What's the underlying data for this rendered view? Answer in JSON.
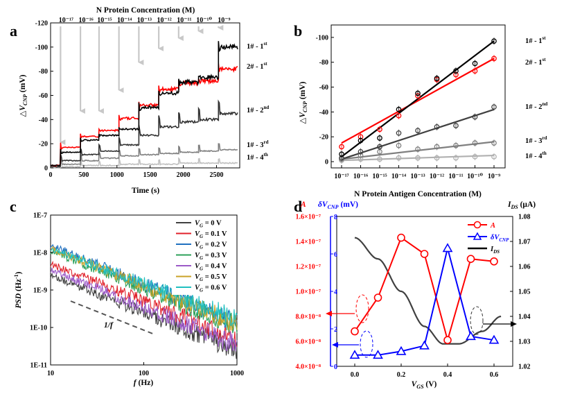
{
  "chart_data": [
    {
      "panel": "a",
      "type": "line",
      "top_axis_title": "N Protein Concentration (M)",
      "top_axis_labels": [
        "10⁻¹⁷",
        "10⁻¹⁶",
        "10⁻¹⁵",
        "10⁻¹⁴",
        "10⁻¹³",
        "10⁻¹²",
        "10⁻¹¹",
        "10⁻¹⁰",
        "10⁻⁹"
      ],
      "injection_times": [
        150,
        450,
        730,
        1030,
        1330,
        1630,
        1930,
        2230,
        2530
      ],
      "xlabel": "Time (s)",
      "ylabel": "△V_CNP (mV)",
      "xlim": [
        0,
        2850
      ],
      "ylim": [
        0,
        -120
      ],
      "x_ticks": [
        "0",
        "500",
        "1000",
        "1500",
        "2000",
        "2500"
      ],
      "y_ticks": [
        "0",
        "-20",
        "-40",
        "-60",
        "-80",
        "-100",
        "-120"
      ],
      "series": [
        {
          "name": "1# - 1st",
          "color": "#000000",
          "levels": [
            -2,
            -13,
            -23,
            -27,
            -32,
            -50,
            -62,
            -71,
            -75,
            -100
          ]
        },
        {
          "name": "2# - 1st",
          "color": "#ff0000",
          "levels": [
            -2,
            -17,
            -26,
            -31,
            -41,
            -52,
            -65,
            -70,
            -72,
            -82
          ]
        },
        {
          "name": "1# - 2nd",
          "color": "#333333",
          "levels": [
            -1,
            -6,
            -11,
            -14,
            -19,
            -27,
            -34,
            -38,
            -40,
            -45
          ]
        },
        {
          "name": "1# - 3rd",
          "color": "#7f7f7f",
          "levels": [
            -1,
            -3,
            -6,
            -8,
            -10,
            -11,
            -12,
            -13,
            -14,
            -15
          ]
        },
        {
          "name": "1# - 4th",
          "color": "#c0c0c0",
          "levels": [
            0,
            -1,
            -2,
            -2,
            -3,
            -3,
            -3,
            -4,
            -4,
            -4
          ]
        }
      ]
    },
    {
      "panel": "b",
      "type": "scatter",
      "xlabel": "N Protein Antigen Concentration (M)",
      "ylabel": "△V_CNP (mV)",
      "x_exponents": [
        -17,
        -16,
        -15,
        -14,
        -13,
        -12,
        -11,
        -10,
        -9
      ],
      "x_tick_labels": [
        "10⁻¹⁷",
        "10⁻¹⁶",
        "10⁻¹⁵",
        "10⁻¹⁴",
        "10⁻¹³",
        "10⁻¹²",
        "10⁻¹¹",
        "10⁻¹⁰",
        "10⁻⁹"
      ],
      "ylim": [
        0,
        -110
      ],
      "y_ticks": [
        "0",
        "-20",
        "-40",
        "-60",
        "-80",
        "-100"
      ],
      "series": [
        {
          "name": "1# - 1st",
          "color": "#000000",
          "values": [
            -6,
            -17,
            -19,
            -42,
            -55,
            -67,
            -73,
            -79,
            -97
          ],
          "fit": [
            -4,
            -97
          ]
        },
        {
          "name": "2# - 1st",
          "color": "#ff0000",
          "values": [
            -12,
            -20,
            -26,
            -37,
            -53,
            -66,
            -70,
            -73,
            -83
          ],
          "fit": [
            -15,
            -83
          ]
        },
        {
          "name": "1# - 2nd",
          "color": "#404040",
          "values": [
            -3,
            -8,
            -12,
            -23,
            -25,
            -28,
            -29,
            -36,
            -44
          ],
          "fit": [
            -2,
            -42
          ]
        },
        {
          "name": "1# - 3rd",
          "color": "#7f7f7f",
          "values": [
            -2,
            -5,
            -8,
            -13,
            -10,
            -12,
            -13,
            -15,
            -15
          ],
          "fit": [
            -2,
            -16
          ]
        },
        {
          "name": "1# - 4th",
          "color": "#b0b0b0",
          "values": [
            -1,
            -2,
            -2,
            -3,
            -3,
            -3,
            -3,
            -4,
            -4
          ],
          "fit": [
            -1,
            -5
          ]
        }
      ]
    },
    {
      "panel": "c",
      "type": "line",
      "xlabel": "f (Hz)",
      "ylabel": "PSD (Hz⁻¹)",
      "x_scale": "log",
      "y_scale": "log",
      "xlim": [
        10,
        1000
      ],
      "ylim": [
        1e-11,
        1e-07
      ],
      "x_ticks": [
        "10",
        "100",
        "1000"
      ],
      "y_ticks": [
        "1E-7",
        "1E-8",
        "1E-9",
        "1E-10",
        "1E-11"
      ],
      "annotation": "1/f",
      "series": [
        {
          "name": "VG = 0 V",
          "color": "#404040",
          "psd_at_10Hz": 2.5e-09,
          "slope": -1.0
        },
        {
          "name": "VG = 0.1 V",
          "color": "#e0202a",
          "psd_at_10Hz": 5e-09,
          "slope": -1.0
        },
        {
          "name": "VG = 0.2 V",
          "color": "#1f6fbf",
          "psd_at_10Hz": 1.6e-08,
          "slope": -1.05
        },
        {
          "name": "VG = 0.3 V",
          "color": "#2ca05a",
          "psd_at_10Hz": 1.1e-08,
          "slope": -1.0
        },
        {
          "name": "VG = 0.4 V",
          "color": "#9b59c7",
          "psd_at_10Hz": 3.5e-09,
          "slope": -1.0
        },
        {
          "name": "VG = 0.5 V",
          "color": "#c9a227",
          "psd_at_10Hz": 1.3e-08,
          "slope": -1.0
        },
        {
          "name": "VG = 0.6 V",
          "color": "#20c0c0",
          "psd_at_10Hz": 1.3e-08,
          "slope": -0.95
        }
      ]
    },
    {
      "panel": "d",
      "type": "line",
      "xlabel": "V_GS (V)",
      "x": [
        0,
        0.1,
        0.2,
        0.3,
        0.4,
        0.5,
        0.6
      ],
      "x_ticks": [
        "0.0",
        "0.2",
        "0.4",
        "0.6"
      ],
      "left_axis_A": {
        "label": "A",
        "color": "#ff0000",
        "ylim": [
          4e-08,
          1.6e-07
        ],
        "ticks": [
          "4.0×10⁻⁸",
          "6.0×10⁻⁸",
          "8.0×10⁻⁸",
          "1.0×10⁻⁷",
          "1.2×10⁻⁷",
          "1.4×10⁻⁷",
          "1.6×10⁻⁷"
        ]
      },
      "left_axis_dV": {
        "label": "δV_CNP (mV)",
        "color": "#0000ff",
        "ylim": [
          0,
          8
        ],
        "ticks": [
          "0",
          "2",
          "4",
          "6",
          "8"
        ]
      },
      "right_axis": {
        "label": "I_DS (μA)",
        "ylim": [
          1.02,
          1.08
        ],
        "ticks": [
          "1.02",
          "1.03",
          "1.04",
          "1.05",
          "1.06",
          "1.07",
          "1.08"
        ]
      },
      "series": [
        {
          "name": "A",
          "color": "#ff0000",
          "axis": "left_A",
          "values": [
            6.8e-08,
            9.5e-08,
            1.43e-07,
            1.3e-07,
            6.1e-08,
            1.26e-07,
            1.24e-07
          ]
        },
        {
          "name": "δV_CNP",
          "color": "#0000ff",
          "axis": "left_dV",
          "values": [
            0.6,
            0.6,
            0.8,
            1.1,
            6.3,
            1.6,
            1.4
          ]
        },
        {
          "name": "I_DS",
          "color": "#404040",
          "axis": "right",
          "curve_x": [
            0,
            0.1,
            0.2,
            0.3,
            0.38,
            0.45,
            0.55,
            0.63
          ],
          "curve_y": [
            1.0715,
            1.063,
            1.05,
            1.036,
            1.029,
            1.029,
            1.034,
            1.04
          ]
        }
      ]
    }
  ],
  "legend_c": [
    "VG = 0 V",
    "VG = 0.1 V",
    "VG = 0.2 V",
    "VG = 0.3 V",
    "VG = 0.4 V",
    "VG = 0.5 V",
    "VG = 0.6 V"
  ],
  "legend_d": [
    "A",
    "δV_CNP",
    "I_DS"
  ]
}
